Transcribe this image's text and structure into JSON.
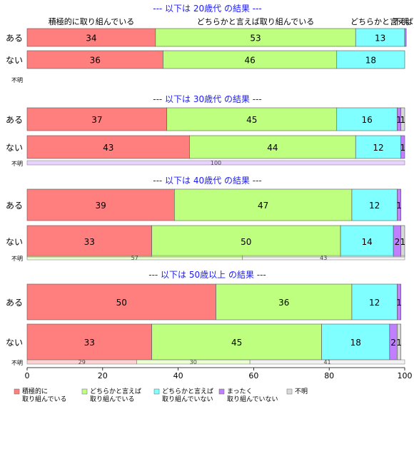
{
  "chart_data": {
    "type": "bar",
    "orientation": "horizontal-stacked",
    "xlim": [
      0,
      100
    ],
    "xticks": [
      0,
      20,
      40,
      60,
      80,
      100
    ],
    "categories": [
      {
        "name": "積極的に取り組んでいる",
        "legend": [
          "積極的に",
          "取り組んでいる"
        ],
        "color": "#ff7f7f"
      },
      {
        "name": "どちらかと言えば取り組んでいる",
        "legend": [
          "どちらかと言えば",
          "取り組んでいる"
        ],
        "color": "#bfff7f"
      },
      {
        "name": "どちらかと言えば取り組んでいない",
        "legend": [
          "どちらかと言えば",
          "取り組んでいない"
        ],
        "color": "#7fffff"
      },
      {
        "name": "まったく取り組んでいない",
        "legend": [
          "まったく",
          "取り組んでいない"
        ],
        "color": "#bf7fff"
      },
      {
        "name": "不明",
        "legend": [
          "不明"
        ],
        "color": "#d9d9d9"
      }
    ],
    "top_header_labels": [
      "積極的に取り組んでいる",
      "どちらかと言えば取り組んでいる",
      "どちらかと言えば",
      "不明"
    ],
    "panels": [
      {
        "title": "--- 以下は 20歳代 の結果 ---",
        "rows": [
          {
            "label": "ある",
            "values": [
              34,
              53,
              13,
              0.4,
              0
            ]
          },
          {
            "label": "ない",
            "values": [
              36,
              46,
              18,
              0,
              0
            ]
          }
        ],
        "unknown": {
          "label": "不明",
          "values": []
        }
      },
      {
        "title": "--- 以下は 30歳代 の結果 ---",
        "rows": [
          {
            "label": "ある",
            "values": [
              37,
              45,
              16,
              1,
              1
            ]
          },
          {
            "label": "ない",
            "values": [
              43,
              44,
              12,
              1,
              0
            ]
          }
        ],
        "unknown": {
          "label": "不明",
          "values": [
            0,
            0,
            0,
            100,
            0
          ]
        }
      },
      {
        "title": "--- 以下は 40歳代 の結果 ---",
        "rows": [
          {
            "label": "ある",
            "values": [
              39,
              47,
              12,
              1,
              0
            ]
          },
          {
            "label": "ない",
            "values": [
              33,
              50,
              14,
              2,
              1
            ]
          }
        ],
        "unknown": {
          "label": "不明",
          "values": [
            0,
            57,
            0,
            0,
            43
          ]
        }
      },
      {
        "title": "--- 以下は 50歳以上 の結果 ---",
        "rows": [
          {
            "label": "ある",
            "values": [
              50,
              36,
              12,
              1,
              0
            ]
          },
          {
            "label": "ない",
            "values": [
              33,
              45,
              18,
              2,
              1
            ]
          }
        ],
        "unknown": {
          "label": "不明",
          "values": [
            29,
            30,
            0,
            0,
            41
          ]
        }
      }
    ]
  }
}
